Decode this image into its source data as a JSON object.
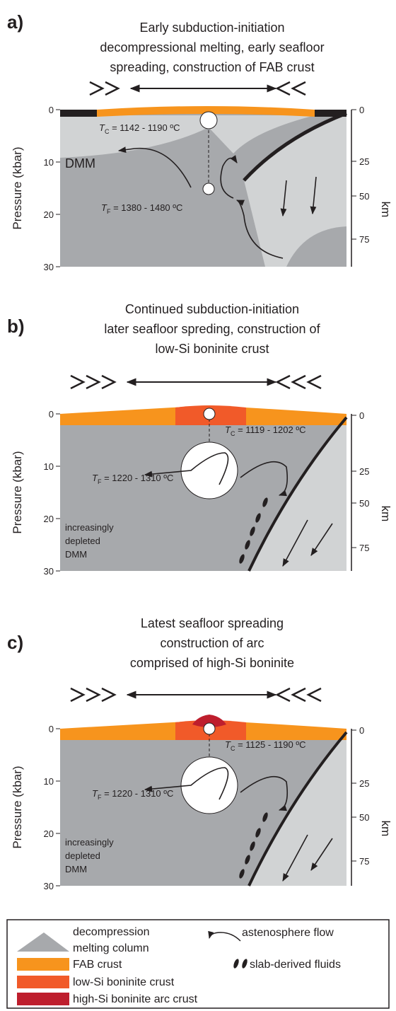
{
  "panels": [
    {
      "label": "a)",
      "title": [
        "Early subduction-initiation",
        "decompressional melting, early seafloor",
        "spreading, construction of FAB crust"
      ],
      "y_axis_label": "Pressure (kbar)",
      "left_ticks": [
        0,
        10,
        20,
        30
      ],
      "right_ticks": [
        0,
        25,
        50,
        75
      ],
      "right_axis_label": "km",
      "annotations": [
        {
          "symbol": "T",
          "sub": "C",
          "text": " = 1142 - 1190 ºC"
        },
        {
          "lines": [
            "DMM"
          ]
        },
        {
          "symbol": "T",
          "sub": "F",
          "text": " = 1380 - 1480 ºC"
        }
      ]
    },
    {
      "label": "b)",
      "title": [
        "Continued subduction-initiation",
        "later seafloor spreding, construction of",
        "low-Si boninite crust"
      ],
      "y_axis_label": "Pressure (kbar)",
      "left_ticks": [
        0,
        10,
        20,
        30
      ],
      "right_ticks": [
        0,
        25,
        50,
        75
      ],
      "right_axis_label": "km",
      "annotations": [
        {
          "symbol": "T",
          "sub": "C",
          "text": " = 1119 - 1202 ºC"
        },
        {
          "lines": [
            "increasingly",
            "depleted",
            "DMM"
          ]
        },
        {
          "symbol": "T",
          "sub": "F",
          "text": " = 1220 - 1310 ºC"
        }
      ]
    },
    {
      "label": "c)",
      "title": [
        "Latest seafloor spreading",
        "construction of arc",
        "comprised of high-Si boninite"
      ],
      "y_axis_label": "Pressure (kbar)",
      "left_ticks": [
        0,
        10,
        20,
        30
      ],
      "right_ticks": [
        0,
        25,
        50,
        75
      ],
      "right_axis_label": "km",
      "annotations": [
        {
          "symbol": "T",
          "sub": "C",
          "text": " = 1125 - 1190 ºC"
        },
        {
          "lines": [
            "increasingly",
            "depleted",
            "DMM"
          ]
        },
        {
          "symbol": "T",
          "sub": "F",
          "text": " = 1220 - 1310 ºC"
        }
      ]
    }
  ],
  "legend": {
    "decompression": [
      "decompression",
      "melting column"
    ],
    "flow": "astenosphere flow",
    "fab": "FAB crust",
    "fluids": "slab-derived fluids",
    "low_si": "low-Si boninite crust",
    "high_si": "high-Si boninite arc crust"
  }
}
